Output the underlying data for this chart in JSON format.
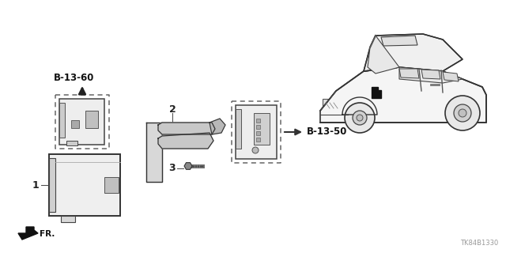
{
  "bg_color": "#ffffff",
  "part_number": "TK84B1330",
  "labels": {
    "b1360": "B-13-60",
    "b1350": "B-13-50",
    "fr": "FR.",
    "num1": "1",
    "num2": "2",
    "num3": "3"
  },
  "fig_width": 6.4,
  "fig_height": 3.2,
  "dpi": 100
}
